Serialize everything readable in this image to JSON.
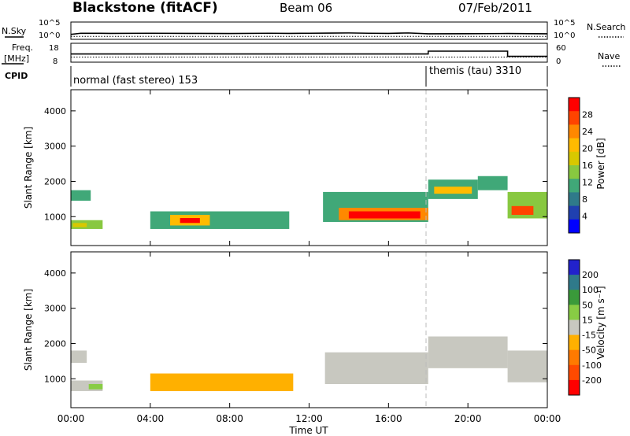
{
  "header": {
    "radar": "Blackstone (fitACF)",
    "beam": "Beam 06",
    "date": "07/Feb/2011"
  },
  "top_panels": {
    "nsky_label": "N.Sky",
    "nsearch_label": "N.Search",
    "nsky_ticks": [
      "10^5",
      "10^0"
    ],
    "nsearch_ticks": [
      "10^5",
      "10^0"
    ],
    "freq_label_1": "Freq.",
    "freq_label_2": "[MHz]",
    "freq_ticks": [
      "18",
      "8"
    ],
    "nave_label": "Nave",
    "nave_ticks": [
      "60",
      "0"
    ],
    "cpid_label": "CPID",
    "cpid_segments": [
      {
        "label": "normal (fast stereo) 153",
        "start_hour": 0,
        "end_hour": 18
      },
      {
        "label": "themis (tau) 3310",
        "start_hour": 18,
        "end_hour": 24
      }
    ]
  },
  "axes": {
    "time_ticks": [
      "00:00",
      "04:00",
      "08:00",
      "12:00",
      "16:00",
      "20:00",
      "00:00"
    ],
    "time_label": "Time UT",
    "range_label": "Slant Range [km]",
    "range_ticks": [
      "1000",
      "2000",
      "3000",
      "4000"
    ]
  },
  "colorbars": {
    "power": {
      "label": "Power [dB]",
      "ticks": [
        "28",
        "24",
        "20",
        "16",
        "12",
        "8",
        "4"
      ],
      "colors": [
        "#ff0000",
        "#ff4400",
        "#ff8800",
        "#ffbb00",
        "#d8c800",
        "#88c840",
        "#40a878",
        "#2f7a8a",
        "#2040b0",
        "#0000ff"
      ]
    },
    "velocity": {
      "label": "Velocity [m s⁻¹]",
      "ticks": [
        "200",
        "100",
        "50",
        "15",
        "-15",
        "-50",
        "-100",
        "-200"
      ],
      "colors": [
        "#2222cc",
        "#2f7a8a",
        "#3a9a3a",
        "#88cc44",
        "#c8c8c0",
        "#ffb000",
        "#ff7a00",
        "#ff4a00",
        "#ff0000"
      ]
    }
  },
  "chart_data": [
    {
      "type": "line",
      "name": "N.Sky / N.Search",
      "x_range_hours": [
        0,
        24
      ],
      "ylim_log10": [
        0,
        5
      ],
      "x": [
        0,
        0.5,
        2,
        4,
        6,
        8,
        10,
        11,
        12,
        13,
        14,
        15,
        16,
        17,
        18,
        20,
        22,
        24
      ],
      "nsky_log10": [
        1.2,
        1.6,
        1.55,
        1.6,
        1.55,
        1.5,
        1.6,
        1.55,
        1.6,
        1.65,
        1.7,
        1.6,
        1.55,
        1.7,
        1.4,
        1.45,
        1.5,
        1.4
      ],
      "nsearch_log10": [
        0.5,
        0.5,
        0.5,
        0.5,
        0.5,
        0.5,
        0.5,
        0.5,
        0.5,
        0.5,
        0.5,
        0.5,
        0.5,
        0.5,
        0.5,
        0.5,
        0.5,
        0.5
      ]
    },
    {
      "type": "line",
      "name": "Freq / Nave",
      "x_range_hours": [
        0,
        24
      ],
      "freq_mhz": {
        "x": [
          0,
          24
        ],
        "y": [
          10.5,
          10.5
        ]
      },
      "nave": {
        "x": [
          0,
          18,
          18,
          22,
          22,
          24
        ],
        "y": [
          28,
          28,
          40,
          40,
          18,
          18
        ]
      },
      "freq_ylim": [
        8,
        18
      ],
      "nave_ylim": [
        0,
        60
      ]
    },
    {
      "type": "heatmap",
      "name": "Power",
      "x_range_hours": [
        0,
        24
      ],
      "ylim_km": [
        180,
        4600
      ],
      "clim_db": [
        0,
        30
      ],
      "regions": [
        {
          "t0": 0.0,
          "t1": 1.0,
          "r0": 1450,
          "r1": 1750,
          "value": 12
        },
        {
          "t0": 0.0,
          "t1": 1.6,
          "r0": 650,
          "r1": 900,
          "value": 14
        },
        {
          "t0": 0.1,
          "t1": 0.8,
          "r0": 700,
          "r1": 820,
          "value": 18
        },
        {
          "t0": 4.0,
          "t1": 11.0,
          "r0": 650,
          "r1": 1150,
          "value": 12
        },
        {
          "t0": 5.0,
          "t1": 7.0,
          "r0": 750,
          "r1": 1050,
          "value": 20
        },
        {
          "t0": 5.5,
          "t1": 6.5,
          "r0": 820,
          "r1": 960,
          "value": 27
        },
        {
          "t0": 12.7,
          "t1": 18.0,
          "r0": 850,
          "r1": 1700,
          "value": 10
        },
        {
          "t0": 13.5,
          "t1": 18.0,
          "r0": 900,
          "r1": 1250,
          "value": 22
        },
        {
          "t0": 14.0,
          "t1": 17.6,
          "r0": 950,
          "r1": 1150,
          "value": 27
        },
        {
          "t0": 18.0,
          "t1": 20.5,
          "r0": 1500,
          "r1": 2050,
          "value": 12
        },
        {
          "t0": 18.3,
          "t1": 20.2,
          "r0": 1650,
          "r1": 1850,
          "value": 20
        },
        {
          "t0": 20.5,
          "t1": 22.0,
          "r0": 1750,
          "r1": 2150,
          "value": 12
        },
        {
          "t0": 22.0,
          "t1": 24.0,
          "r0": 950,
          "r1": 1700,
          "value": 14
        },
        {
          "t0": 22.2,
          "t1": 23.3,
          "r0": 1050,
          "r1": 1300,
          "value": 24
        }
      ]
    },
    {
      "type": "heatmap",
      "name": "Velocity",
      "x_range_hours": [
        0,
        24
      ],
      "ylim_km": [
        180,
        4600
      ],
      "clim_ms": [
        -220,
        220
      ],
      "regions": [
        {
          "t0": 0.0,
          "t1": 0.8,
          "r0": 1450,
          "r1": 1800,
          "value": 0
        },
        {
          "t0": 0.0,
          "t1": 1.6,
          "r0": 650,
          "r1": 950,
          "value": 0
        },
        {
          "t0": 0.9,
          "t1": 1.6,
          "r0": 700,
          "r1": 850,
          "value": 30
        },
        {
          "t0": 4.0,
          "t1": 11.2,
          "r0": 650,
          "r1": 1150,
          "value": -45
        },
        {
          "t0": 12.8,
          "t1": 18.0,
          "r0": 850,
          "r1": 1750,
          "value": 0
        },
        {
          "t0": 18.0,
          "t1": 22.0,
          "r0": 1300,
          "r1": 2200,
          "value": 0
        },
        {
          "t0": 22.0,
          "t1": 24.0,
          "r0": 900,
          "r1": 1800,
          "value": 0
        }
      ]
    }
  ]
}
